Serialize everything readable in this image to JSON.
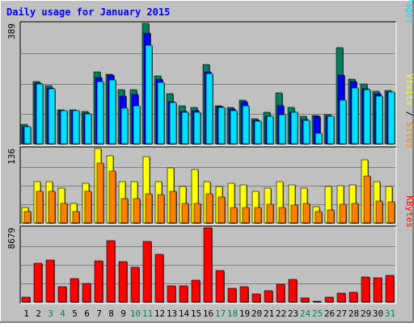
{
  "title": "Daily usage for January 2015",
  "colors": {
    "frame_bg": "#C0C0C0",
    "plot_bg": "#C0C0C0",
    "title": "#0000FF",
    "hits": "#00805C",
    "files": "#0000FF",
    "pages": "#00E0FF",
    "visits": "#FFFF00",
    "sites": "#FF8000",
    "kbytes": "#FF0000",
    "weekend_day": "#00805C",
    "weekday": "#000000",
    "grid": "#808080"
  },
  "days": [
    "1",
    "2",
    "3",
    "4",
    "5",
    "6",
    "7",
    "8",
    "9",
    "10",
    "11",
    "12",
    "13",
    "14",
    "15",
    "16",
    "17",
    "18",
    "19",
    "20",
    "21",
    "22",
    "23",
    "24",
    "25",
    "26",
    "27",
    "28",
    "29",
    "30",
    "31"
  ],
  "weekend_days": [
    "3",
    "4",
    "10",
    "11",
    "17",
    "18",
    "24",
    "25",
    "31"
  ],
  "chart_data": [
    {
      "type": "bar",
      "name": "hits-files-pages",
      "legend": [
        {
          "key": "pages",
          "label": "Pages"
        },
        {
          "key": "sep1",
          "label": " / "
        },
        {
          "key": "files",
          "label": "Files"
        },
        {
          "key": "sep2",
          "label": " / "
        },
        {
          "key": "hits",
          "label": "Hits"
        }
      ],
      "y_max_label": "389",
      "ylim": [
        0,
        389
      ],
      "series": [
        {
          "key": "hits",
          "name": "Hits",
          "values": [
            63,
            201,
            189,
            110,
            110,
            105,
            233,
            225,
            174,
            174,
            389,
            220,
            162,
            123,
            117,
            256,
            124,
            117,
            141,
            82,
            102,
            164,
            117,
            90,
            92,
            95,
            310,
            209,
            194,
            170,
            173
          ]
        },
        {
          "key": "files",
          "name": "Files",
          "values": [
            54,
            195,
            181,
            108,
            107,
            98,
            213,
            221,
            153,
            160,
            357,
            208,
            135,
            105,
            106,
            233,
            119,
            112,
            135,
            75,
            90,
            124,
            103,
            78,
            88,
            88,
            222,
            200,
            177,
            163,
            168
          ]
        },
        {
          "key": "pages",
          "name": "Pages",
          "values": [
            54,
            193,
            178,
            107,
            106,
            96,
            201,
            205,
            114,
            123,
            319,
            199,
            132,
            102,
            102,
            227,
            117,
            107,
            123,
            72,
            88,
            95,
            102,
            76,
            34,
            88,
            142,
            181,
            175,
            154,
            168
          ]
        }
      ]
    },
    {
      "type": "bar",
      "name": "visits-sites",
      "legend": [
        {
          "key": "sites",
          "label": "Sites"
        },
        {
          "key": "sep1",
          "label": " / "
        },
        {
          "key": "visits",
          "label": "Visits"
        }
      ],
      "y_max_label": "136",
      "ylim": [
        0,
        136
      ],
      "series": [
        {
          "key": "visits",
          "name": "Visits",
          "values": [
            28,
            76,
            76,
            63,
            35,
            73,
            136,
            123,
            76,
            76,
            121,
            76,
            101,
            66,
            98,
            76,
            66,
            72,
            70,
            58,
            63,
            76,
            70,
            64,
            30,
            66,
            68,
            70,
            116,
            76,
            66
          ]
        },
        {
          "key": "sites",
          "name": "Sites",
          "values": [
            20,
            57,
            57,
            35,
            20,
            58,
            110,
            94,
            44,
            44,
            53,
            51,
            58,
            35,
            35,
            53,
            48,
            28,
            28,
            28,
            34,
            28,
            33,
            35,
            20,
            23,
            34,
            35,
            85,
            40,
            38
          ]
        }
      ]
    },
    {
      "type": "bar",
      "name": "kbytes",
      "legend": [
        {
          "key": "kbytes",
          "label": "KBytes"
        }
      ],
      "y_max_label": "8679",
      "ylim": [
        0,
        8679
      ],
      "series": [
        {
          "key": "kbytes",
          "name": "KBytes",
          "values": [
            600,
            4500,
            4900,
            1800,
            2700,
            2200,
            4800,
            7200,
            4700,
            4100,
            7100,
            5600,
            1900,
            1900,
            2500,
            8679,
            3700,
            1600,
            1800,
            900,
            1300,
            2100,
            2600,
            500,
            100,
            600,
            1000,
            1100,
            2900,
            2800,
            3100
          ]
        }
      ]
    }
  ]
}
